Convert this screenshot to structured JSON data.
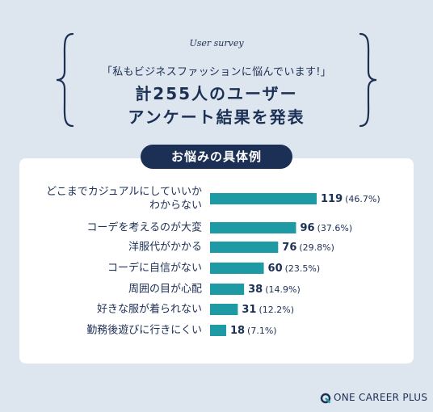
{
  "header": {
    "survey_label": "User survey",
    "subtitle": "「私もビジネスファッションに悩んでいます!」",
    "title_line1": "計255人のユーザー",
    "title_line2": "アンケート結果を発表"
  },
  "section": {
    "badge": "お悩みの具体例"
  },
  "chart_data": {
    "type": "bar",
    "orientation": "horizontal",
    "categories": [
      [
        "どこまでカジュアルにしていいか",
        "わからない"
      ],
      [
        "コーデを考えるのが大変"
      ],
      [
        "洋服代がかかる"
      ],
      [
        "コーデに自信がない"
      ],
      [
        "周囲の目が心配"
      ],
      [
        "好きな服が着られない"
      ],
      [
        "勤務後遊びに行きにくい"
      ]
    ],
    "values": [
      119,
      96,
      76,
      60,
      38,
      31,
      18
    ],
    "percent_labels": [
      "(46.7%)",
      "(37.6%)",
      "(29.8%)",
      "(23.5%)",
      "(14.9%)",
      "(12.2%)",
      "(7.1%)"
    ],
    "bar_color": "#1e9aa5",
    "value_color": "#1c2f55",
    "xlim": [
      0,
      119
    ]
  },
  "footer": {
    "logo_text": "ONE CAREER PLUS"
  },
  "colors": {
    "navy": "#1c2f55",
    "teal": "#1e9aa5",
    "background": "#dde6ee"
  }
}
